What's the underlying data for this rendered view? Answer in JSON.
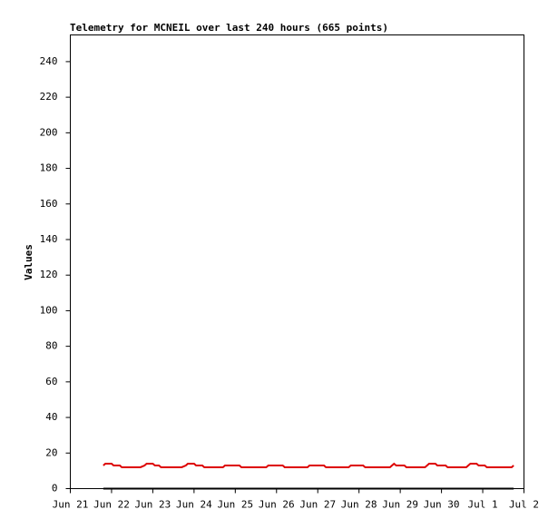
{
  "chart_data": {
    "type": "line",
    "title": "Telemetry for MCNEIL over last 240 hours (665 points)",
    "y_label": "Values",
    "xlim": [
      0,
      11
    ],
    "xticks": [
      {
        "value": 0,
        "label": "Jun 21"
      },
      {
        "value": 1,
        "label": "Jun 22"
      },
      {
        "value": 2,
        "label": "Jun 23"
      },
      {
        "value": 3,
        "label": "Jun 24"
      },
      {
        "value": 4,
        "label": "Jun 25"
      },
      {
        "value": 5,
        "label": "Jun 26"
      },
      {
        "value": 6,
        "label": "Jun 27"
      },
      {
        "value": 7,
        "label": "Jun 28"
      },
      {
        "value": 8,
        "label": "Jun 29"
      },
      {
        "value": 9,
        "label": "Jun 30"
      },
      {
        "value": 10,
        "label": "Jul 1"
      },
      {
        "value": 11,
        "label": "Jul 2"
      }
    ],
    "ylim": [
      0,
      255
    ],
    "yticks": [
      0,
      20,
      40,
      60,
      80,
      100,
      120,
      140,
      160,
      180,
      200,
      220,
      240
    ],
    "series": [
      {
        "color": "#dd0000",
        "x": [
          0.8,
          0.85,
          1.0,
          1.05,
          1.2,
          1.25,
          1.7,
          1.8,
          1.85,
          2.0,
          2.05,
          2.15,
          2.2,
          2.7,
          2.8,
          2.85,
          3.0,
          3.05,
          3.2,
          3.25,
          3.7,
          3.75,
          4.1,
          4.15,
          4.75,
          4.8,
          5.15,
          5.2,
          5.75,
          5.8,
          6.15,
          6.2,
          6.75,
          6.8,
          7.1,
          7.15,
          7.75,
          7.8,
          7.85,
          7.9,
          8.1,
          8.15,
          8.6,
          8.65,
          8.7,
          8.85,
          8.9,
          9.1,
          9.15,
          9.6,
          9.65,
          9.7,
          9.85,
          9.9,
          10.05,
          10.1,
          10.7,
          10.75
        ],
        "values": [
          13,
          14,
          14,
          13,
          13,
          12,
          12,
          13,
          14,
          14,
          13,
          13,
          12,
          12,
          13,
          14,
          14,
          13,
          13,
          12,
          12,
          13,
          13,
          12,
          12,
          13,
          13,
          12,
          12,
          13,
          13,
          12,
          12,
          13,
          13,
          12,
          12,
          13,
          14,
          13,
          13,
          12,
          12,
          13,
          14,
          14,
          13,
          13,
          12,
          12,
          13,
          14,
          14,
          13,
          13,
          12,
          12,
          13
        ]
      },
      {
        "color": "#000000",
        "x": [
          0.8,
          10.75
        ],
        "values": [
          0,
          0
        ]
      }
    ]
  }
}
